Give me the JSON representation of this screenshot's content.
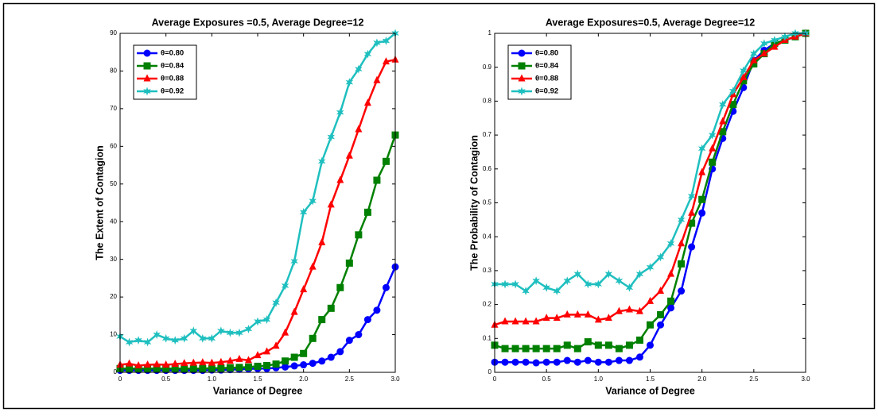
{
  "chart_data": [
    {
      "type": "line",
      "title": "Average Exposures =0.5, Average Degree=12",
      "xlabel": "Variance of Degree",
      "ylabel": "The Extent of Contagion",
      "x": [
        0,
        0.1,
        0.2,
        0.3,
        0.4,
        0.5,
        0.6,
        0.7,
        0.8,
        0.9,
        1,
        1.1,
        1.2,
        1.3,
        1.4,
        1.5,
        1.6,
        1.7,
        1.8,
        1.9,
        2,
        2.1,
        2.2,
        2.3,
        2.4,
        2.5,
        2.6,
        2.7,
        2.8,
        2.9,
        3
      ],
      "xlim": [
        0,
        3
      ],
      "xticks": [
        0,
        0.5,
        {
          "value": 1,
          "label": "1.0"
        },
        1.5,
        {
          "value": 2,
          "label": "2.0"
        },
        2.5,
        {
          "value": 3,
          "label": "3.0"
        }
      ],
      "ylim": [
        0,
        90
      ],
      "yticks": [
        0,
        10,
        20,
        30,
        40,
        50,
        60,
        70,
        80,
        90
      ],
      "legend": "upper-left",
      "series": [
        {
          "name": "θ=0.80",
          "color": "#0000ff",
          "marker": "circle",
          "values": [
            0.5,
            0.5,
            0.5,
            0.5,
            0.5,
            0.5,
            0.5,
            0.5,
            0.5,
            0.5,
            0.6,
            0.6,
            0.7,
            0.8,
            0.9,
            1.0,
            1.0,
            1.2,
            1.4,
            1.7,
            2.0,
            2.4,
            3.0,
            4.0,
            5.5,
            8.5,
            10,
            14,
            16.5,
            22.5,
            28
          ]
        },
        {
          "name": "θ=0.84",
          "color": "#008000",
          "marker": "square",
          "values": [
            1,
            1,
            1,
            1,
            1,
            1,
            1,
            1,
            1,
            1,
            1.1,
            1.1,
            1.2,
            1.3,
            1.4,
            1.6,
            1.8,
            2.2,
            3,
            4,
            5,
            9,
            14,
            17,
            22.5,
            29,
            36.5,
            42.5,
            51,
            56,
            63
          ]
        },
        {
          "name": "θ=0.88",
          "color": "#ff0000",
          "marker": "triangle",
          "values": [
            2,
            2.3,
            1.8,
            2,
            2.1,
            2,
            2.2,
            2.4,
            2.5,
            2.6,
            2.5,
            2.7,
            3,
            3.5,
            3.2,
            4.5,
            5.5,
            7,
            10.5,
            16,
            22,
            28,
            34.5,
            44.5,
            51,
            57.5,
            64.5,
            71.5,
            77.5,
            82.5,
            83
          ]
        },
        {
          "name": "θ=0.92",
          "color": "#1fbfbf",
          "marker": "star",
          "values": [
            9.5,
            8,
            8.5,
            8,
            10,
            9,
            8.5,
            9,
            11,
            9,
            9,
            11,
            10.5,
            10.5,
            11.5,
            13.5,
            14,
            18.5,
            23,
            29.5,
            42.5,
            45.5,
            56,
            62.5,
            69,
            77,
            80.5,
            84.5,
            87.5,
            88,
            90
          ]
        }
      ]
    },
    {
      "type": "line",
      "title": "Average Exposures=0.5, Average Degree=12",
      "xlabel": "Variance of Degree",
      "ylabel": "The Probability of Contagion",
      "x": [
        0,
        0.1,
        0.2,
        0.3,
        0.4,
        0.5,
        0.6,
        0.7,
        0.8,
        0.9,
        1,
        1.1,
        1.2,
        1.3,
        1.4,
        1.5,
        1.6,
        1.7,
        1.8,
        1.9,
        2,
        2.1,
        2.2,
        2.3,
        2.4,
        2.5,
        2.6,
        2.7,
        2.8,
        2.9,
        3
      ],
      "xlim": [
        0,
        3
      ],
      "xticks": [
        0,
        0.5,
        {
          "value": 1,
          "label": "1.0"
        },
        1.5,
        {
          "value": 2,
          "label": "2.0"
        },
        2.5,
        {
          "value": 3,
          "label": "3.0"
        }
      ],
      "ylim": [
        0,
        1
      ],
      "yticks": [
        0,
        0.1,
        0.2,
        0.3,
        0.4,
        0.5,
        0.6,
        0.7,
        0.8,
        0.9,
        1
      ],
      "legend": "upper-left",
      "series": [
        {
          "name": "θ=0.80",
          "color": "#0000ff",
          "marker": "circle",
          "values": [
            0.03,
            0.03,
            0.03,
            0.03,
            0.028,
            0.03,
            0.03,
            0.035,
            0.03,
            0.035,
            0.03,
            0.03,
            0.035,
            0.035,
            0.045,
            0.08,
            0.14,
            0.19,
            0.24,
            0.37,
            0.47,
            0.6,
            0.69,
            0.77,
            0.84,
            0.92,
            0.95,
            0.97,
            0.98,
            0.99,
            1.0
          ]
        },
        {
          "name": "θ=0.84",
          "color": "#008000",
          "marker": "square",
          "values": [
            0.08,
            0.07,
            0.07,
            0.07,
            0.07,
            0.07,
            0.07,
            0.08,
            0.07,
            0.09,
            0.08,
            0.08,
            0.07,
            0.08,
            0.095,
            0.14,
            0.17,
            0.21,
            0.32,
            0.44,
            0.51,
            0.62,
            0.71,
            0.79,
            0.86,
            0.91,
            0.94,
            0.97,
            0.98,
            0.99,
            1.0
          ]
        },
        {
          "name": "θ=0.88",
          "color": "#ff0000",
          "marker": "triangle",
          "values": [
            0.14,
            0.15,
            0.15,
            0.15,
            0.15,
            0.16,
            0.16,
            0.17,
            0.17,
            0.17,
            0.155,
            0.16,
            0.18,
            0.185,
            0.18,
            0.21,
            0.24,
            0.29,
            0.38,
            0.47,
            0.59,
            0.66,
            0.74,
            0.82,
            0.87,
            0.92,
            0.94,
            0.96,
            0.98,
            0.99,
            1.0
          ]
        },
        {
          "name": "θ=0.92",
          "color": "#1fbfbf",
          "marker": "star",
          "values": [
            0.26,
            0.26,
            0.26,
            0.24,
            0.27,
            0.25,
            0.24,
            0.27,
            0.29,
            0.26,
            0.26,
            0.29,
            0.27,
            0.25,
            0.29,
            0.31,
            0.34,
            0.38,
            0.45,
            0.52,
            0.66,
            0.7,
            0.79,
            0.83,
            0.89,
            0.94,
            0.97,
            0.98,
            0.99,
            1.0,
            1.0
          ]
        }
      ]
    }
  ]
}
